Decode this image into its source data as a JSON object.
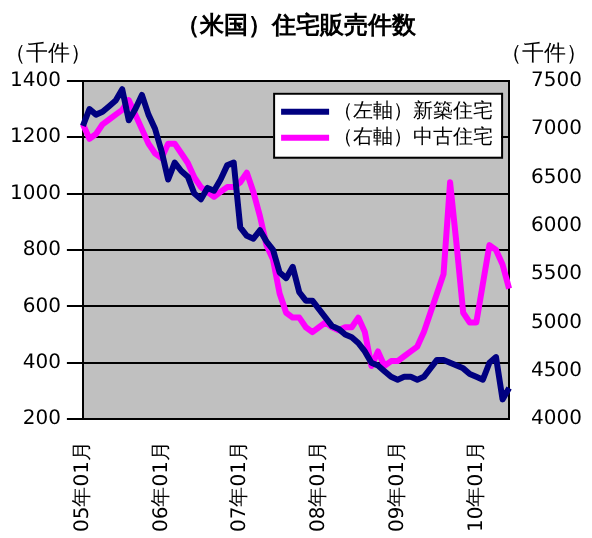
{
  "chart_data": {
    "type": "line",
    "title": "（米国）住宅販売件数",
    "ylabel": "（千件）",
    "y2label": "（千件）",
    "categories": [
      "05年01月",
      null,
      null,
      null,
      null,
      null,
      null,
      null,
      null,
      null,
      null,
      null,
      "06年01月",
      null,
      null,
      null,
      null,
      null,
      null,
      null,
      null,
      null,
      null,
      null,
      "07年01月",
      null,
      null,
      null,
      null,
      null,
      null,
      null,
      null,
      null,
      null,
      null,
      "08年01月",
      null,
      null,
      null,
      null,
      null,
      null,
      null,
      null,
      null,
      null,
      null,
      "09年01月",
      null,
      null,
      null,
      null,
      null,
      null,
      null,
      null,
      null,
      null,
      null,
      "10年01月",
      null,
      null,
      null,
      null,
      null
    ],
    "series": [
      {
        "name": "（左軸）新築住宅",
        "color": "#000080",
        "values": [
          1240,
          1300,
          1280,
          1290,
          1310,
          1330,
          1370,
          1260,
          1300,
          1350,
          1280,
          1230,
          1150,
          1050,
          1110,
          1080,
          1060,
          1000,
          980,
          1020,
          1010,
          1050,
          1100,
          1110,
          880,
          850,
          840,
          870,
          830,
          800,
          720,
          700,
          740,
          650,
          620,
          620,
          590,
          560,
          530,
          520,
          500,
          490,
          470,
          440,
          400,
          390,
          370,
          350,
          340,
          350,
          350,
          340,
          350,
          380,
          410,
          410,
          400,
          390,
          380,
          360,
          350,
          340,
          400,
          420,
          270,
          310
        ]
      },
      {
        "name": "（右軸）中古住宅",
        "color": "#ff00ff",
        "axis": "y2",
        "values": [
          7050,
          6900,
          6950,
          7050,
          7100,
          7150,
          7200,
          7300,
          7150,
          7000,
          6850,
          6750,
          6700,
          6850,
          6850,
          6750,
          6650,
          6500,
          6400,
          6350,
          6300,
          6350,
          6400,
          6400,
          6450,
          6550,
          6350,
          6100,
          5800,
          5650,
          5300,
          5100,
          5050,
          5050,
          4950,
          4900,
          4950,
          5000,
          4950,
          4920,
          4950,
          4950,
          5050,
          4900,
          4550,
          4700,
          4550,
          4600,
          4600,
          4650,
          4700,
          4750,
          4900,
          5100,
          5300,
          5500,
          6450,
          5800,
          5100,
          5000,
          5000,
          5400,
          5800,
          5750,
          5600,
          5350
        ]
      }
    ],
    "ylim": [
      200,
      1400
    ],
    "yticks": [
      200,
      400,
      600,
      800,
      1000,
      1200,
      1400
    ],
    "y2lim": [
      4000,
      7500
    ],
    "y2ticks": [
      4000,
      4500,
      5000,
      5500,
      6000,
      6500,
      7000,
      7500
    ],
    "grid": "y",
    "legend": "top right",
    "marker": "none",
    "line_style": "solid"
  }
}
